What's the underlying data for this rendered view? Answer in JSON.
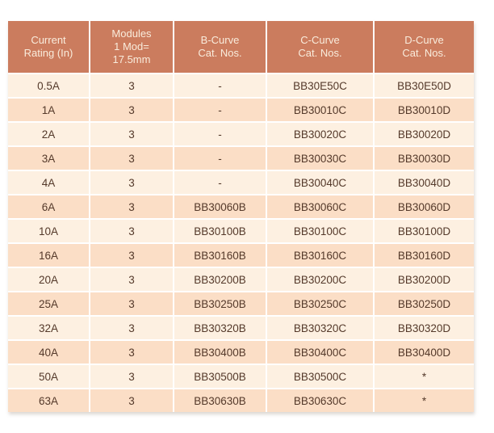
{
  "colors": {
    "header_bg": "#cb7c5e",
    "header_text": "#f9ecdc",
    "row_light": "#fdf0e1",
    "row_dark": "#fbdec6",
    "cell_text": "#54392a",
    "divider": "#ffffff"
  },
  "table": {
    "headers": [
      "Current\nRating (In)",
      "Modules\n1 Mod=\n17.5mm",
      "B-Curve\nCat. Nos.",
      "C-Curve\nCat. Nos.",
      "D-Curve\nCat. Nos."
    ],
    "rows": [
      [
        "0.5A",
        "3",
        "-",
        "BB30E50C",
        "BB30E50D"
      ],
      [
        "1A",
        "3",
        "-",
        "BB30010C",
        "BB30010D"
      ],
      [
        "2A",
        "3",
        "-",
        "BB30020C",
        "BB30020D"
      ],
      [
        "3A",
        "3",
        "-",
        "BB30030C",
        "BB30030D"
      ],
      [
        "4A",
        "3",
        "-",
        "BB30040C",
        "BB30040D"
      ],
      [
        "6A",
        "3",
        "BB30060B",
        "BB30060C",
        "BB30060D"
      ],
      [
        "10A",
        "3",
        "BB30100B",
        "BB30100C",
        "BB30100D"
      ],
      [
        "16A",
        "3",
        "BB30160B",
        "BB30160C",
        "BB30160D"
      ],
      [
        "20A",
        "3",
        "BB30200B",
        "BB30200C",
        "BB30200D"
      ],
      [
        "25A",
        "3",
        "BB30250B",
        "BB30250C",
        "BB30250D"
      ],
      [
        "32A",
        "3",
        "BB30320B",
        "BB30320C",
        "BB30320D"
      ],
      [
        "40A",
        "3",
        "BB30400B",
        "BB30400C",
        "BB30400D"
      ],
      [
        "50A",
        "3",
        "BB30500B",
        "BB30500C",
        "*"
      ],
      [
        "63A",
        "3",
        "BB30630B",
        "BB30630C",
        "*"
      ]
    ]
  }
}
